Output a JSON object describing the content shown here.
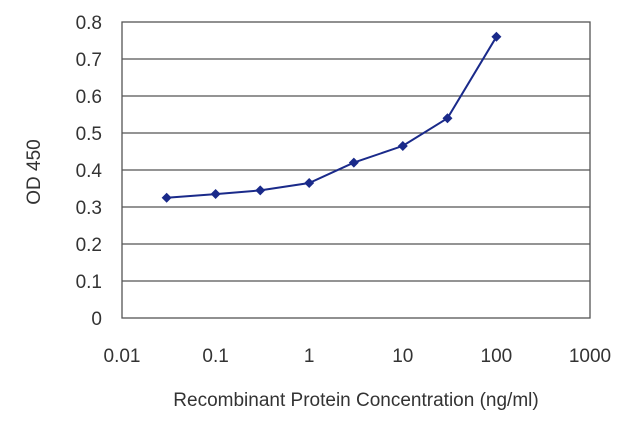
{
  "chart_data": {
    "type": "line",
    "xlabel": "Recombinant Protein Concentration (ng/ml)",
    "ylabel": "OD 450",
    "x_scale": "log",
    "xlim": [
      0.01,
      1000
    ],
    "ylim": [
      0,
      0.8
    ],
    "x_tick_labels": [
      "0.01",
      "0.1",
      "1",
      "10",
      "100",
      "1000"
    ],
    "y_tick_labels": [
      "0",
      "0.1",
      "0.2",
      "0.3",
      "0.4",
      "0.5",
      "0.6",
      "0.7",
      "0.8"
    ],
    "grid": "horizontal",
    "series": [
      {
        "x": [
          0.03,
          0.1,
          0.3,
          1,
          3,
          10,
          30,
          100
        ],
        "y": [
          0.325,
          0.335,
          0.345,
          0.365,
          0.42,
          0.465,
          0.54,
          0.76
        ]
      }
    ],
    "colors": {
      "series": "#1a2a8a",
      "grid": "#555555",
      "text": "#333333"
    }
  }
}
